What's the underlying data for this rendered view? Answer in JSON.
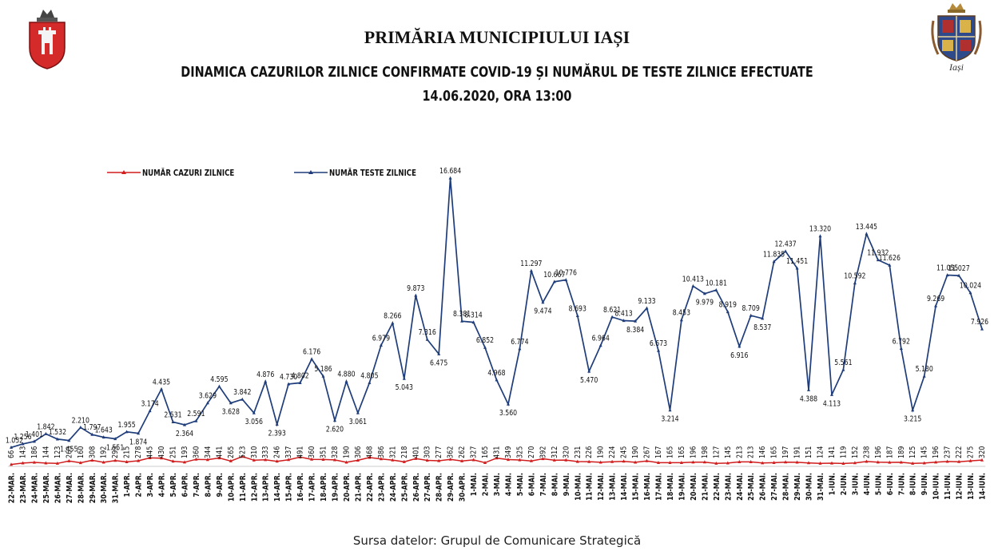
{
  "header": {
    "institution": "PRIMĂRIA MUNICIPIULUI IAȘI",
    "title": "DINAMICA CAZURILOR ZILNICE CONFIRMATE COVID-19 ȘI NUMĂRUL DE TESTE ZILNICE EFECTUATE",
    "date": "14.06.2020, ORA 13:00",
    "right_logo_text": "Iași"
  },
  "source": "Sursa datelor: Grupul de Comunicare Strategică",
  "colors": {
    "cases": "#d01c1c",
    "tests": "#1f3d7a",
    "text": "#111111"
  },
  "chart_data": {
    "type": "line",
    "title": "DINAMICA CAZURILOR ZILNICE CONFIRMATE COVID-19 ȘI NUMĂRUL DE TESTE ZILNICE EFECTUATE",
    "xlabel": "",
    "ylabel": "",
    "ylim": [
      0,
      17500
    ],
    "grid": false,
    "legend": "top-left",
    "categories": [
      "22-MAR.",
      "23-MAR.",
      "24-MAR.",
      "25-MAR.",
      "26-MAR.",
      "27-MAR.",
      "28-MAR.",
      "29-MAR.",
      "30-MAR.",
      "31-MAR.",
      "1-APR.",
      "2-APR.",
      "3-APR.",
      "4-APR.",
      "5-APR.",
      "6-APR.",
      "7-APR.",
      "8-APR.",
      "9-APR.",
      "10-APR.",
      "11-APR.",
      "12-APR.",
      "13-APR.",
      "14-APR.",
      "15-APR.",
      "16-APR.",
      "17-APR.",
      "18-APR.",
      "19-APR.",
      "20-APR.",
      "21-APR.",
      "22-APR.",
      "23-APR.",
      "24-APR.",
      "25-APR.",
      "26-APR.",
      "27-APR.",
      "28-APR.",
      "29-APR.",
      "30-APR.",
      "1-MAI.",
      "2-MAI.",
      "3-MAI.",
      "4-MAI.",
      "5-MAI.",
      "6-MAI.",
      "7-MAI.",
      "8-MAI.",
      "9-MAI.",
      "10-MAI.",
      "11-MAI.",
      "12-MAI.",
      "13-MAI.",
      "14-MAI.",
      "15-MAI.",
      "16-MAI.",
      "17-MAI.",
      "18-MAI.",
      "19-MAI.",
      "20-MAI.",
      "21-MAI.",
      "22-MAI.",
      "23-MAI.",
      "24-MAI.",
      "25-MAI.",
      "26-MAI.",
      "27-MAI.",
      "28-MAI.",
      "29-MAI.",
      "30-MAI.",
      "31-MAI.",
      "1-IUN.",
      "2-IUN.",
      "3-IUN.",
      "4-IUN.",
      "5-IUN.",
      "6-IUN.",
      "7-IUN.",
      "8-IUN.",
      "9-IUN.",
      "10-IUN.",
      "11-IUN.",
      "12-IUN.",
      "13-IUN.",
      "14-IUN."
    ],
    "series": [
      {
        "name": "NUMĂR CAZURI ZILNICE",
        "color": "#d01c1c",
        "values": [
          66,
          143,
          186,
          144,
          123,
          263,
          160,
          308,
          192,
          293,
          215,
          278,
          445,
          430,
          251,
          193,
          360,
          344,
          441,
          265,
          523,
          310,
          333,
          246,
          337,
          491,
          360,
          351,
          328,
          190,
          306,
          468,
          386,
          321,
          218,
          401,
          303,
          277,
          362,
          262,
          327,
          165,
          431,
          349,
          325,
          270,
          392,
          312,
          320,
          231,
          226,
          190,
          224,
          245,
          190,
          267,
          167,
          165,
          165,
          196,
          198,
          127,
          145,
          213,
          213,
          146,
          165,
          197,
          191,
          151,
          124,
          141,
          119,
          152,
          238,
          196,
          187,
          189,
          125,
          145,
          196,
          237,
          222,
          275,
          320
        ],
        "labels": [
          "66",
          "143",
          "186",
          "144",
          "123",
          "263",
          "160",
          "308",
          "192",
          "293",
          "215",
          "278",
          "445",
          "430",
          "251",
          "193",
          "360",
          "344",
          "441",
          "265",
          "523",
          "310",
          "333",
          "246",
          "337",
          "491",
          "360",
          "351",
          "328",
          "190",
          "306",
          "468",
          "386",
          "321",
          "218",
          "401",
          "303",
          "277",
          "362",
          "262",
          "327",
          "165",
          "431",
          "349",
          "325",
          "270",
          "392",
          "312",
          "320",
          "231",
          "226",
          "190",
          "224",
          "245",
          "190",
          "267",
          "167",
          "165",
          "165",
          "196",
          "198",
          "127",
          "145",
          "213",
          "213",
          "146",
          "165",
          "197",
          "191",
          "151",
          "124",
          "141",
          "119",
          "152",
          "238",
          "196",
          "187",
          "189",
          "125",
          "145",
          "196",
          "237",
          "222",
          "275",
          "320"
        ]
      },
      {
        "name": "NUMĂR TESTE ZILNICE",
        "color": "#1f3d7a",
        "values": [
          1052,
          1256,
          1401,
          1842,
          1532,
          1455,
          2210,
          1797,
          1643,
          1551,
          1955,
          1874,
          3174,
          4435,
          2531,
          2364,
          2591,
          3629,
          4595,
          3628,
          3842,
          3056,
          4876,
          2393,
          4730,
          4802,
          6176,
          5186,
          2620,
          4880,
          3061,
          4805,
          6979,
          8266,
          5043,
          9873,
          7316,
          6475,
          16684,
          8381,
          8314,
          6852,
          4968,
          3560,
          6774,
          11297,
          9474,
          10667,
          10776,
          8693,
          5470,
          6964,
          8621,
          8413,
          8384,
          9133,
          6673,
          3214,
          8453,
          10413,
          9979,
          10181,
          8919,
          6916,
          8709,
          8537,
          11835,
          12437,
          11451,
          4388,
          13320,
          4113,
          5561,
          10592,
          13445,
          11932,
          11626,
          6792,
          3215,
          5180,
          9269,
          11055,
          11027,
          10024,
          7926
        ],
        "labels": [
          "1.052",
          "1.256",
          "1.401",
          "1.842",
          "1.532",
          "1.455",
          "2.210",
          "1.797",
          "1.643",
          "1.551",
          "1.955",
          "1.874",
          "3.174",
          "4.435",
          "2.531",
          "2.364",
          "2.591",
          "3.629",
          "4.595",
          "3.628",
          "3.842",
          "3.056",
          "4.876",
          "2.393",
          "4.730",
          "4.802",
          "6.176",
          "5.186",
          "2.620",
          "4.880",
          "3.061",
          "4.805",
          "6.979",
          "8.266",
          "5.043",
          "9.873",
          "7.316",
          "6.475",
          "16.684",
          "8.381",
          "8.314",
          "6.852",
          "4.968",
          "3.560",
          "6.774",
          "11.297",
          "9.474",
          "10.667",
          "10.776",
          "8.693",
          "5.470",
          "6.964",
          "8.621",
          "8.413",
          "8.384",
          "9.133",
          "6.673",
          "3.214",
          "8.453",
          "10.413",
          "9.979",
          "10.181",
          "8.919",
          "6.916",
          "8.709",
          "8.537",
          "11.835",
          "12.437",
          "11.451",
          "4.388",
          "13.320",
          "4.113",
          "5.561",
          "10.592",
          "13.445",
          "11.932",
          "11.626",
          "6.792",
          "3.215",
          "5.180",
          "9.269",
          "11.055",
          "11.027",
          "10.024",
          "7.926"
        ]
      }
    ]
  }
}
